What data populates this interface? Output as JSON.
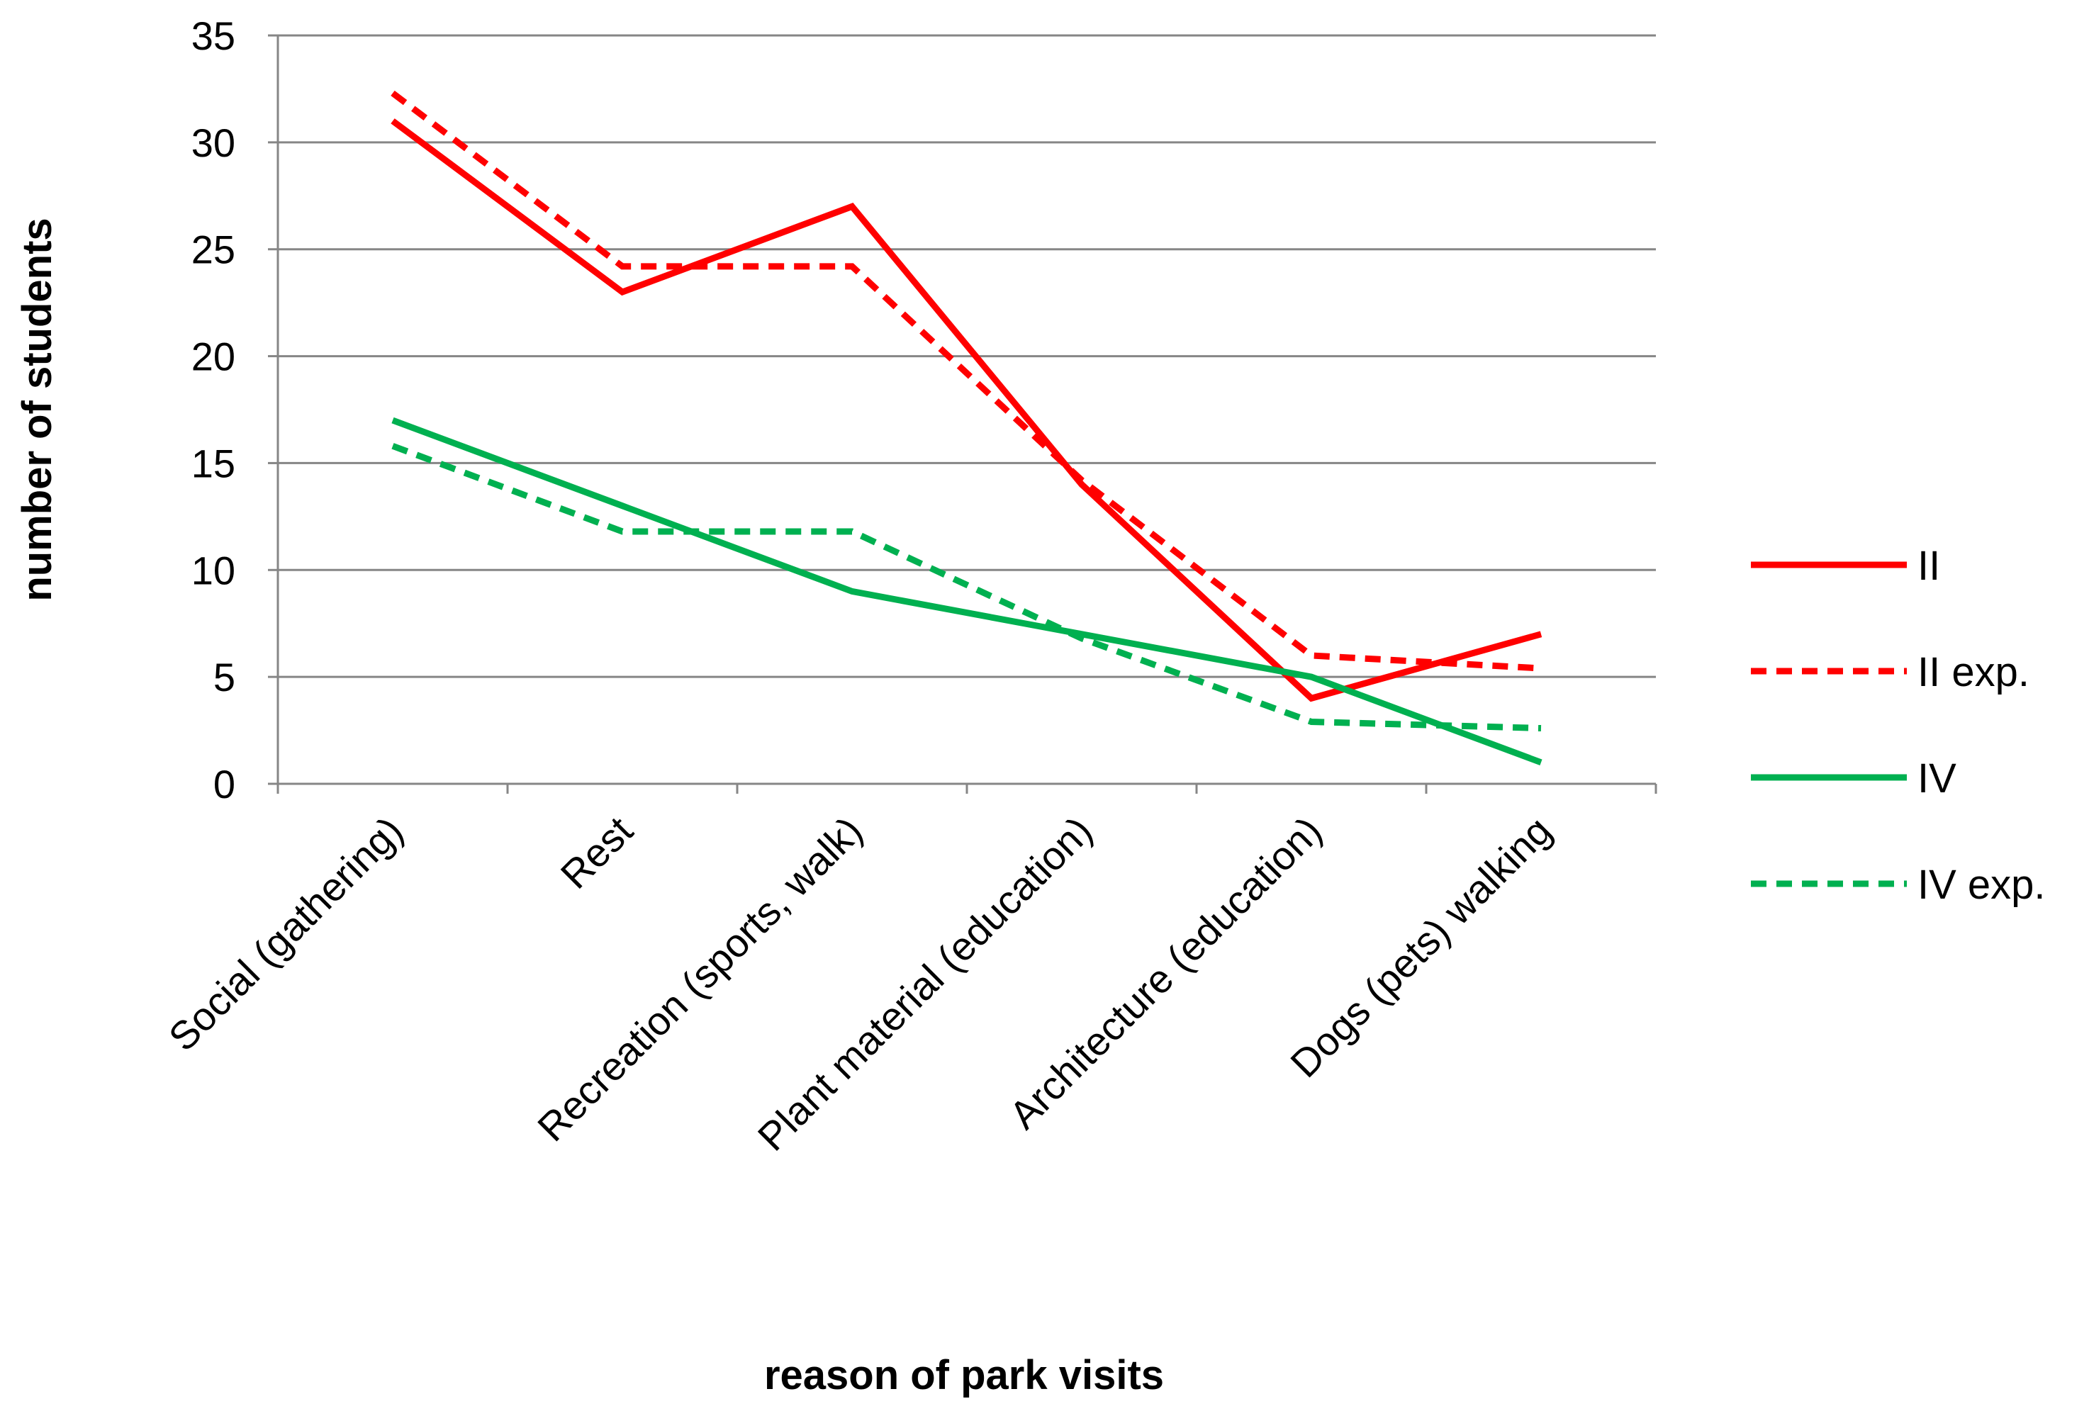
{
  "chart_data": {
    "type": "line",
    "title": "",
    "xlabel": "reason of park visits",
    "ylabel": "number of students",
    "ylim": [
      0,
      35
    ],
    "yticks": [
      "0",
      "5",
      "10",
      "15",
      "20",
      "25",
      "30",
      "35"
    ],
    "grid": true,
    "legend_position": "right",
    "categories": [
      "Social (gathering)",
      "Rest",
      "Recreation (sports, walk)",
      "Plant material (education)",
      "Architecture (education)",
      "Dogs (pets) walking"
    ],
    "series": [
      {
        "name": "II",
        "values": [
          31,
          23,
          27,
          14,
          4,
          7
        ],
        "color": "#ff0000",
        "dash": "solid"
      },
      {
        "name": "II exp.",
        "values": [
          32.3,
          24.2,
          24.2,
          14.2,
          6.0,
          5.4
        ],
        "color": "#ff0000",
        "dash": "dashed"
      },
      {
        "name": "IV",
        "values": [
          17,
          13,
          9,
          7,
          5,
          1
        ],
        "color": "#00b050",
        "dash": "solid"
      },
      {
        "name": "IV exp.",
        "values": [
          15.8,
          11.8,
          11.8,
          6.8,
          2.9,
          2.6
        ],
        "color": "#00b050",
        "dash": "dashed"
      }
    ]
  }
}
